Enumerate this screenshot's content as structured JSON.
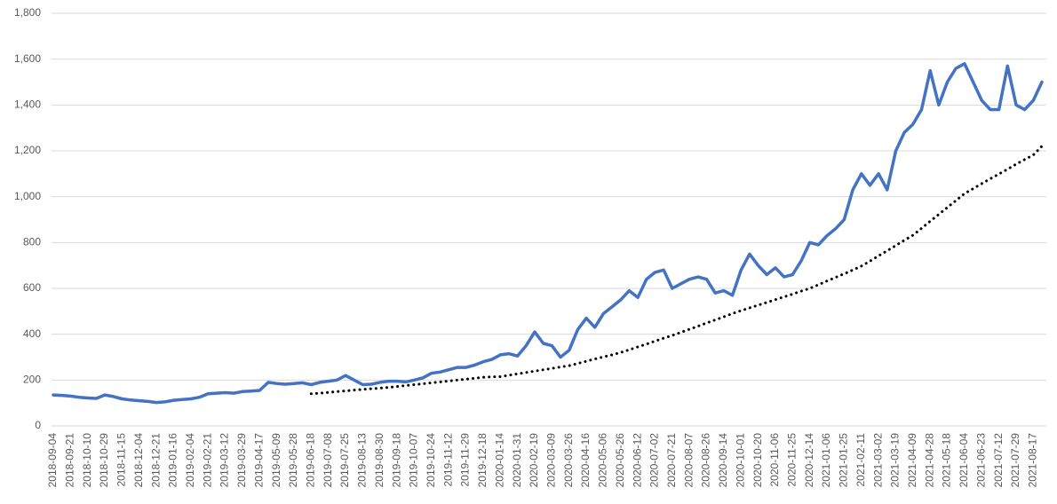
{
  "chart_data": {
    "type": "line",
    "categories": [
      "2018-09-04",
      null,
      "2018-09-21",
      null,
      "2018-10-10",
      null,
      "2018-10-29",
      null,
      "2018-11-15",
      null,
      "2018-12-04",
      null,
      "2018-12-21",
      null,
      "2019-01-16",
      null,
      "2019-02-04",
      null,
      "2019-02-21",
      null,
      "2019-03-12",
      null,
      "2019-03-29",
      null,
      "2019-04-17",
      null,
      "2019-05-09",
      null,
      "2019-05-28",
      null,
      "2019-06-18",
      null,
      "2019-07-08",
      null,
      "2019-07-25",
      null,
      "2019-08-13",
      null,
      "2019-08-30",
      null,
      "2019-09-18",
      null,
      "2019-10-07",
      null,
      "2019-10-24",
      null,
      "2019-11-12",
      null,
      "2019-11-29",
      null,
      "2019-12-18",
      null,
      "2020-01-14",
      null,
      "2020-01-31",
      null,
      "2020-02-19",
      null,
      "2020-03-09",
      null,
      "2020-03-26",
      null,
      "2020-04-16",
      null,
      "2020-05-06",
      null,
      "2020-05-26",
      null,
      "2020-06-12",
      null,
      "2020-07-02",
      null,
      "2020-07-21",
      null,
      "2020-08-07",
      null,
      "2020-08-26",
      null,
      "2020-09-14",
      null,
      "2020-10-01",
      null,
      "2020-10-20",
      null,
      "2020-11-06",
      null,
      "2020-11-25",
      null,
      "2020-12-14",
      null,
      "2021-01-06",
      null,
      "2021-01-25",
      null,
      "2021-02-11",
      null,
      "2021-03-02",
      null,
      "2021-03-19",
      null,
      "2021-04-09",
      null,
      "2021-04-28",
      null,
      "2021-05-18",
      null,
      "2021-06-04",
      null,
      "2021-06-23",
      null,
      "2021-07-12",
      null,
      "2021-07-29",
      null,
      "2021-08-17",
      null
    ],
    "series": [
      {
        "color": "#4472c4",
        "style": "solid",
        "values": [
          135,
          133,
          130,
          125,
          122,
          120,
          135,
          128,
          118,
          113,
          110,
          107,
          102,
          105,
          112,
          115,
          118,
          125,
          140,
          143,
          145,
          143,
          150,
          152,
          155,
          190,
          185,
          182,
          185,
          188,
          180,
          190,
          195,
          200,
          220,
          200,
          180,
          182,
          190,
          195,
          195,
          192,
          200,
          210,
          230,
          235,
          245,
          255,
          255,
          265,
          280,
          290,
          310,
          315,
          305,
          350,
          410,
          360,
          350,
          300,
          330,
          420,
          470,
          430,
          490,
          520,
          550,
          590,
          560,
          640,
          670,
          680,
          600,
          620,
          640,
          650,
          640,
          580,
          590,
          570,
          680,
          750,
          700,
          660,
          690,
          650,
          660,
          720,
          800,
          790,
          830,
          860,
          900,
          1030,
          1100,
          1050,
          1100,
          1030,
          1200,
          1280,
          1316,
          1380,
          1550,
          1400,
          1500,
          1560,
          1580,
          1500,
          1420,
          1380,
          1380,
          1570,
          1400,
          1380,
          1420,
          1500
        ]
      },
      {
        "color": "#000000",
        "style": "dotted",
        "values": [
          null,
          null,
          null,
          null,
          null,
          null,
          null,
          null,
          null,
          null,
          null,
          null,
          null,
          null,
          null,
          null,
          null,
          null,
          null,
          null,
          null,
          null,
          null,
          null,
          null,
          null,
          null,
          null,
          null,
          null,
          140,
          143,
          146,
          150,
          153,
          156,
          159,
          162,
          165,
          168,
          172,
          176,
          180,
          184,
          188,
          192,
          196,
          200,
          204,
          208,
          212,
          214,
          215,
          221,
          227,
          233,
          239,
          245,
          251,
          257,
          263,
          272,
          282,
          292,
          301,
          310,
          320,
          332,
          345,
          357,
          370,
          383,
          395,
          408,
          422,
          435,
          449,
          462,
          476,
          490,
          503,
          515,
          527,
          539,
          551,
          563,
          575,
          588,
          600,
          616,
          632,
          648,
          664,
          680,
          697,
          719,
          742,
          764,
          787,
          810,
          832,
          862,
          893,
          923,
          953,
          983,
          1014,
          1035,
          1057,
          1078,
          1099,
          1120,
          1142,
          1162,
          1182,
          1220
        ]
      }
    ],
    "ylim": [
      0,
      1800
    ],
    "yticks": [
      0,
      200,
      400,
      600,
      800,
      {
        "value": 1000,
        "label": "1,000"
      },
      {
        "value": 1200,
        "label": "1,200"
      },
      {
        "value": 1400,
        "label": "1,400"
      },
      {
        "value": 1600,
        "label": "1,600"
      },
      {
        "value": 1800,
        "label": "1,800"
      }
    ],
    "grid": true
  }
}
